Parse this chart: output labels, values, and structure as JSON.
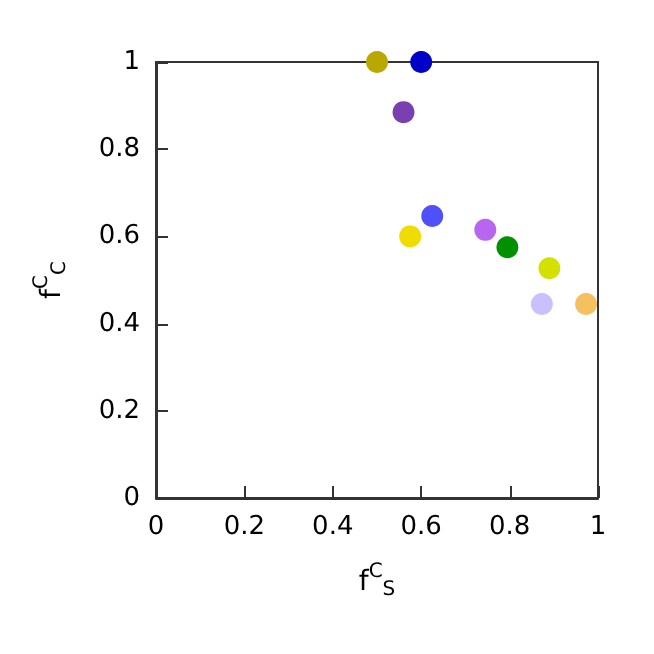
{
  "chart_data": {
    "type": "scatter",
    "xlabel": "f$^{C}$$_{S}$",
    "ylabel": "f$^{C}$$_{C}$",
    "x": [
      0.5,
      0.6,
      0.56,
      0.625,
      0.575,
      0.745,
      0.795,
      0.89,
      0.873,
      0.973
    ],
    "values": [
      1.0,
      1.0,
      0.885,
      0.647,
      0.6,
      0.615,
      0.575,
      0.527,
      0.445,
      0.445
    ],
    "colors": [
      "#b8a800",
      "#0000c8",
      "#7a3fb0",
      "#5050f8",
      "#f0dc00",
      "#b866f0",
      "#009000",
      "#d4e000",
      "#c8c0ff",
      "#f4c060"
    ],
    "marker": "circle",
    "grid": false,
    "xlim": [
      0,
      1
    ],
    "ylim": [
      0,
      1
    ],
    "xticks": [
      0,
      {
        "value": 0.2,
        "label": "0.2"
      },
      {
        "value": 0.4,
        "label": "0.4"
      },
      {
        "value": 0.6,
        "label": "0.6"
      },
      {
        "value": 0.8,
        "label": "0.8"
      },
      1
    ],
    "yticks": [
      0,
      {
        "value": 0.2,
        "label": "0.2"
      },
      {
        "value": 0.4,
        "label": "0.4"
      },
      {
        "value": 0.6,
        "label": "0.6"
      },
      {
        "value": 0.8,
        "label": "0.8"
      },
      1
    ]
  }
}
